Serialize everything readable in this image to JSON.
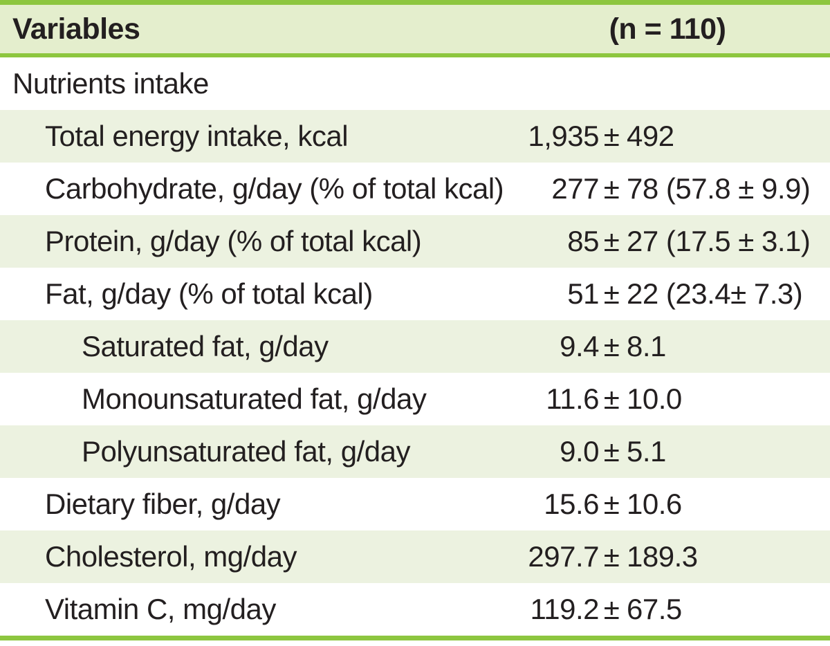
{
  "colors": {
    "accent_green": "#8dc63f",
    "header_bg": "#e4eecd",
    "stripe_bg": "#ecf2e0",
    "text": "#231f20",
    "page_bg": "#ffffff"
  },
  "table": {
    "pm_symbol": "±",
    "header": {
      "variables": "Variables",
      "n": "(n = 110)"
    },
    "rows": [
      {
        "label": "Nutrients intake",
        "indent": 0,
        "mean": "",
        "sd": "",
        "shaded": false
      },
      {
        "label": "Total energy intake, kcal",
        "indent": 1,
        "mean": "1,935",
        "sd": "492",
        "shaded": true
      },
      {
        "label": "Carbohydrate, g/day (% of total kcal)",
        "indent": 1,
        "mean": "277",
        "sd": "78 (57.8 ± 9.9)",
        "shaded": false
      },
      {
        "label": "Protein, g/day (% of total kcal)",
        "indent": 1,
        "mean": "85",
        "sd": "27 (17.5 ± 3.1)",
        "shaded": true
      },
      {
        "label": "Fat, g/day (% of total kcal)",
        "indent": 1,
        "mean": "51",
        "sd": "22 (23.4± 7.3)",
        "shaded": false
      },
      {
        "label": "Saturated fat, g/day",
        "indent": 2,
        "mean": "9.4",
        "sd": "8.1",
        "shaded": true
      },
      {
        "label": "Monounsaturated fat, g/day",
        "indent": 2,
        "mean": "11.6",
        "sd": "10.0",
        "shaded": false
      },
      {
        "label": "Polyunsaturated fat, g/day",
        "indent": 2,
        "mean": "9.0",
        "sd": "5.1",
        "shaded": true
      },
      {
        "label": "Dietary fiber, g/day",
        "indent": 1,
        "mean": "15.6",
        "sd": "10.6",
        "shaded": false
      },
      {
        "label": "Cholesterol, mg/day",
        "indent": 1,
        "mean": "297.7",
        "sd": "189.3",
        "shaded": true
      },
      {
        "label": "Vitamin C, mg/day",
        "indent": 1,
        "mean": "119.2",
        "sd": "67.5",
        "shaded": false
      }
    ]
  }
}
